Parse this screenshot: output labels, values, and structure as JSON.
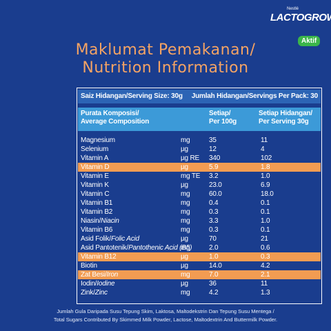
{
  "brand": {
    "maker": "Nestlé",
    "name": "LACTOGROW",
    "variant": "Aktif"
  },
  "title": [
    "Maklumat Pemakanan/",
    "Nutrition Information"
  ],
  "serving": {
    "size": "Saiz Hidangan/Serving Size: 30g",
    "per_pack": "Jumlah Hidangan/Servings Per Pack: 30"
  },
  "header": {
    "composition": [
      "Purata Komposisi/",
      "Average Composition"
    ],
    "per100": [
      "Setiap/",
      "Per 100g"
    ],
    "per_serving": [
      "Setiap Hidangan/",
      "Per Serving 30g"
    ]
  },
  "rows": [
    {
      "name": "Magnesium",
      "unit": "mg",
      "per100": "35",
      "per_serving": "11"
    },
    {
      "name": "Selenium",
      "unit": "µg",
      "per100": "12",
      "per_serving": "4"
    },
    {
      "name": "Vitamin A",
      "unit": "µg RE",
      "per100": "340",
      "per_serving": "102"
    },
    {
      "name": "Vitamin D",
      "unit": "µg",
      "per100": "5.9",
      "per_serving": "1.8",
      "highlight": true
    },
    {
      "name": "Vitamin E",
      "unit": "mg TE",
      "per100": "3.2",
      "per_serving": "1.0"
    },
    {
      "name": "Vitamin K",
      "unit": "µg",
      "per100": "23.0",
      "per_serving": "6.9"
    },
    {
      "name": "Vitamin C",
      "unit": "mg",
      "per100": "60.0",
      "per_serving": "18.0"
    },
    {
      "name": "Vitamin B1",
      "unit": "mg",
      "per100": "0.4",
      "per_serving": "0.1"
    },
    {
      "name": "Vitamin B2",
      "unit": "mg",
      "per100": "0.3",
      "per_serving": "0.1"
    },
    {
      "name": "Niasin/",
      "name_italic": "Niacin",
      "unit": "mg",
      "per100": "3.3",
      "per_serving": "1.0"
    },
    {
      "name": "Vitamin B6",
      "unit": "mg",
      "per100": "0.3",
      "per_serving": "0.1"
    },
    {
      "name": "Asid Folik/",
      "name_italic": "Folic Acid",
      "unit": "µg",
      "per100": "70",
      "per_serving": "21"
    },
    {
      "name": "Asid Pantotenik/",
      "name_italic": "Pantothenic Acid (B5)",
      "unit": "mg",
      "per100": "2.0",
      "per_serving": "0.6"
    },
    {
      "name": "Vitamin B12",
      "unit": "µg",
      "per100": "1.0",
      "per_serving": "0.3",
      "highlight": true
    },
    {
      "name": "Biotin",
      "unit": "µg",
      "per100": "14.0",
      "per_serving": "4.2"
    },
    {
      "name": "Zat Besi/",
      "name_italic": "Iron",
      "unit": "mg",
      "per100": "7.0",
      "per_serving": "2.1",
      "highlight": true
    },
    {
      "name": "Iodin/",
      "name_italic": "Iodine",
      "unit": "µg",
      "per100": "36",
      "per_serving": "11"
    },
    {
      "name": "Zink/",
      "name_italic": "Zinc",
      "unit": "mg",
      "per100": "4.2",
      "per_serving": "1.3"
    }
  ],
  "footnote": [
    "Jumlah Gula Daripada Susu Tepung Skim, Laktosa, Maltodekstrin Dan Tepung Susu Mentega /",
    "Total Sugars Contributed By Skimmed Milk Powder, Lactose, Maltodextrin And Buttermilk Powder."
  ]
}
